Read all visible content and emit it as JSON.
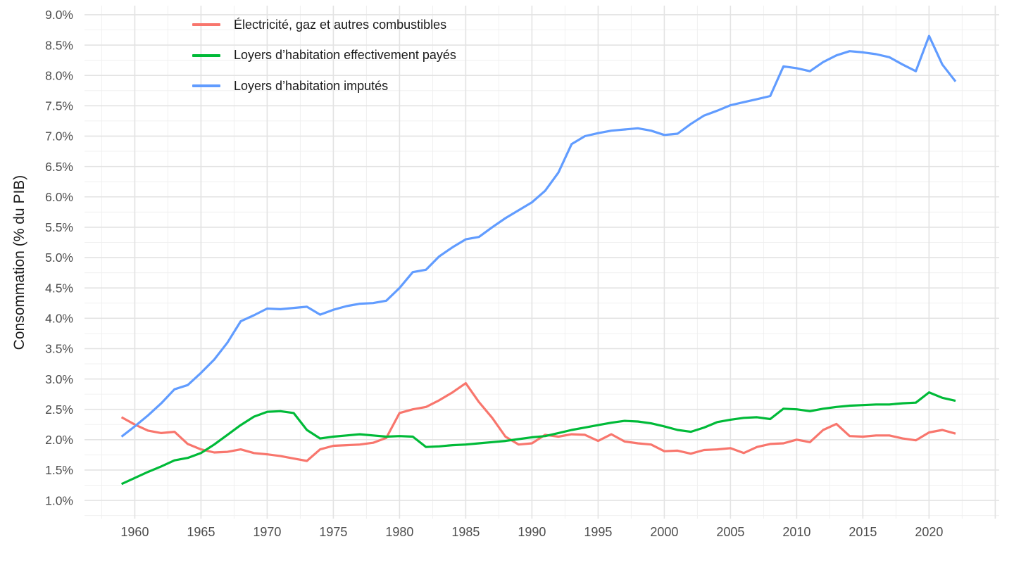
{
  "chart_data": {
    "type": "line",
    "title": "",
    "xlabel": "",
    "ylabel": "Consommation (% du PIB)",
    "grid": "major+minor",
    "legend_position": "top-left-inside",
    "background": "#ffffff",
    "grid_major_color": "#e3e3e3",
    "grid_minor_color": "#f0f0f0",
    "tick_label_color": "#4d4d4d",
    "xlim": [
      1956.2,
      2025.3
    ],
    "ylim": [
      0.7,
      9.15
    ],
    "x": [
      1959,
      1960,
      1961,
      1962,
      1963,
      1964,
      1965,
      1966,
      1967,
      1968,
      1969,
      1970,
      1971,
      1972,
      1973,
      1974,
      1975,
      1976,
      1977,
      1978,
      1979,
      1980,
      1981,
      1982,
      1983,
      1984,
      1985,
      1986,
      1987,
      1988,
      1989,
      1990,
      1991,
      1992,
      1993,
      1994,
      1995,
      1996,
      1997,
      1998,
      1999,
      2000,
      2001,
      2002,
      2003,
      2004,
      2005,
      2006,
      2007,
      2008,
      2009,
      2010,
      2011,
      2012,
      2013,
      2014,
      2015,
      2016,
      2017,
      2018,
      2019,
      2020,
      2021,
      2022
    ],
    "series": [
      {
        "name": "Électricité, gaz et autres combustibles",
        "color": "#F8766D",
        "values": [
          2.37,
          2.25,
          2.15,
          2.11,
          2.13,
          1.93,
          1.84,
          1.79,
          1.8,
          1.84,
          1.78,
          1.76,
          1.73,
          1.69,
          1.65,
          1.84,
          1.9,
          1.91,
          1.92,
          1.95,
          2.03,
          2.44,
          2.5,
          2.54,
          2.65,
          2.78,
          2.93,
          2.62,
          2.36,
          2.05,
          1.92,
          1.94,
          2.08,
          2.05,
          2.09,
          2.08,
          1.98,
          2.09,
          1.97,
          1.94,
          1.92,
          1.81,
          1.82,
          1.77,
          1.83,
          1.84,
          1.86,
          1.78,
          1.88,
          1.93,
          1.94,
          2.0,
          1.96,
          2.16,
          2.26,
          2.06,
          2.05,
          2.07,
          2.07,
          2.02,
          1.99,
          2.12,
          2.16,
          2.1
        ]
      },
      {
        "name": "Loyers d’habitation effectivement payés",
        "color": "#00BA38",
        "values": [
          1.27,
          1.37,
          1.47,
          1.56,
          1.66,
          1.7,
          1.78,
          1.92,
          2.08,
          2.24,
          2.38,
          2.46,
          2.47,
          2.44,
          2.16,
          2.02,
          2.05,
          2.07,
          2.09,
          2.07,
          2.05,
          2.06,
          2.05,
          1.88,
          1.89,
          1.91,
          1.92,
          1.94,
          1.96,
          1.98,
          2.01,
          2.04,
          2.06,
          2.11,
          2.16,
          2.2,
          2.24,
          2.28,
          2.31,
          2.3,
          2.27,
          2.22,
          2.16,
          2.13,
          2.2,
          2.29,
          2.33,
          2.36,
          2.37,
          2.34,
          2.51,
          2.5,
          2.47,
          2.51,
          2.54,
          2.56,
          2.57,
          2.58,
          2.58,
          2.6,
          2.61,
          2.78,
          2.69,
          2.64
        ]
      },
      {
        "name": "Loyers d’habitation imputés",
        "color": "#619CFF",
        "values": [
          2.05,
          2.22,
          2.4,
          2.6,
          2.83,
          2.9,
          3.1,
          3.32,
          3.6,
          3.95,
          4.05,
          4.16,
          4.15,
          4.17,
          4.19,
          4.06,
          4.14,
          4.2,
          4.24,
          4.25,
          4.29,
          4.5,
          4.76,
          4.8,
          5.02,
          5.17,
          5.3,
          5.34,
          5.5,
          5.65,
          5.78,
          5.91,
          6.1,
          6.4,
          6.87,
          7.0,
          7.05,
          7.09,
          7.11,
          7.13,
          7.09,
          7.02,
          7.04,
          7.2,
          7.34,
          7.42,
          7.51,
          7.56,
          7.61,
          7.66,
          8.15,
          8.12,
          8.07,
          8.22,
          8.33,
          8.4,
          8.38,
          8.35,
          8.3,
          8.18,
          8.07,
          8.65,
          8.18,
          7.9
        ]
      }
    ],
    "x_ticks": [
      {
        "v": 1960,
        "label": "1960"
      },
      {
        "v": 1965,
        "label": "1965"
      },
      {
        "v": 1970,
        "label": "1970"
      },
      {
        "v": 1975,
        "label": "1975"
      },
      {
        "v": 1980,
        "label": "1980"
      },
      {
        "v": 1985,
        "label": "1985"
      },
      {
        "v": 1990,
        "label": "1990"
      },
      {
        "v": 1995,
        "label": "1995"
      },
      {
        "v": 2000,
        "label": "2000"
      },
      {
        "v": 2005,
        "label": "2005"
      },
      {
        "v": 2010,
        "label": "2010"
      },
      {
        "v": 2015,
        "label": "2015"
      },
      {
        "v": 2020,
        "label": "2020"
      }
    ],
    "x_major_gridlines": [
      1960,
      1965,
      1970,
      1975,
      1980,
      1985,
      1990,
      1995,
      2000,
      2005,
      2010,
      2015,
      2020,
      2025
    ],
    "x_minor_gridlines": [
      1957.5,
      1962.5,
      1967.5,
      1972.5,
      1977.5,
      1982.5,
      1987.5,
      1992.5,
      1997.5,
      2002.5,
      2007.5,
      2012.5,
      2017.5,
      2022.5
    ],
    "y_ticks": [
      {
        "v": 1.0,
        "label": "1.0%"
      },
      {
        "v": 1.5,
        "label": "1.5%"
      },
      {
        "v": 2.0,
        "label": "2.0%"
      },
      {
        "v": 2.5,
        "label": "2.5%"
      },
      {
        "v": 3.0,
        "label": "3.0%"
      },
      {
        "v": 3.5,
        "label": "3.5%"
      },
      {
        "v": 4.0,
        "label": "4.0%"
      },
      {
        "v": 4.5,
        "label": "4.5%"
      },
      {
        "v": 5.0,
        "label": "5.0%"
      },
      {
        "v": 5.5,
        "label": "5.5%"
      },
      {
        "v": 6.0,
        "label": "6.0%"
      },
      {
        "v": 6.5,
        "label": "6.5%"
      },
      {
        "v": 7.0,
        "label": "7.0%"
      },
      {
        "v": 7.5,
        "label": "7.5%"
      },
      {
        "v": 8.0,
        "label": "8.0%"
      },
      {
        "v": 8.5,
        "label": "8.5%"
      },
      {
        "v": 9.0,
        "label": "9.0%"
      }
    ],
    "y_minor_gridlines": [
      0.75,
      1.25,
      1.75,
      2.25,
      2.75,
      3.25,
      3.75,
      4.25,
      4.75,
      5.25,
      5.75,
      6.25,
      6.75,
      7.25,
      7.75,
      8.25,
      8.75
    ]
  }
}
